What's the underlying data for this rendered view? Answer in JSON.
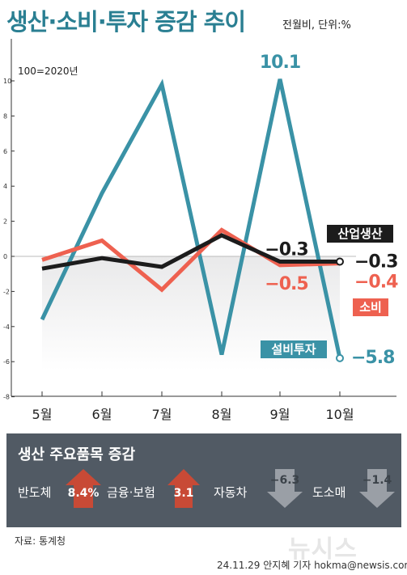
{
  "header": {
    "title": "생산·소비·투자 증감 추이",
    "subtitle": "전월비, 단위:%"
  },
  "chart_data": {
    "type": "line",
    "base_note": "100=2020년",
    "categories": [
      "5월",
      "6월",
      "7월",
      "8월",
      "9월",
      "10월"
    ],
    "ylim": [
      -8,
      10
    ],
    "yticks": [
      10,
      8,
      6,
      4,
      2,
      0,
      -2,
      -4,
      -6,
      -8
    ],
    "grid": false,
    "series": [
      {
        "name": "설비투자",
        "color": "#3a92a6",
        "values": [
          -3.6,
          3.6,
          9.8,
          -5.6,
          10.1,
          -5.8
        ]
      },
      {
        "name": "소비",
        "color": "#ee6150",
        "values": [
          -0.2,
          0.9,
          -1.9,
          1.5,
          -0.5,
          -0.4
        ]
      },
      {
        "name": "산업생산",
        "color": "#1c1c1c",
        "values": [
          -0.7,
          -0.1,
          -0.6,
          1.2,
          -0.3,
          -0.3
        ]
      }
    ],
    "annotations": [
      {
        "text": "10.1",
        "series": "설비투자",
        "index": 4,
        "color": "#3a92a6"
      },
      {
        "text": "−5.8",
        "series": "설비투자",
        "index": 5,
        "color": "#3a92a6"
      },
      {
        "text": "−0.3",
        "series": "산업생산",
        "index": 4,
        "color": "#1c1c1c"
      },
      {
        "text": "−0.3",
        "series": "산업생산",
        "index": 5,
        "color": "#1c1c1c"
      },
      {
        "text": "−0.5",
        "series": "소비",
        "index": 4,
        "color": "#ee6150"
      },
      {
        "text": "−0.4",
        "series": "소비",
        "index": 5,
        "color": "#ee6150"
      }
    ]
  },
  "panel": {
    "title": "생산 주요품목 증감",
    "items": [
      {
        "label": "반도체",
        "value": "8.4%",
        "direction": "up"
      },
      {
        "label": "금융·보험",
        "value": "3.1",
        "direction": "up"
      },
      {
        "label": "자동차",
        "value": "−6.3",
        "direction": "down"
      },
      {
        "label": "도소매",
        "value": "−1.4",
        "direction": "down"
      }
    ]
  },
  "footer": {
    "source": "자료: 통계청",
    "watermark": "뉴시스",
    "credit": "24.11.29  안지혜 기자  hokma@newsis.com"
  }
}
